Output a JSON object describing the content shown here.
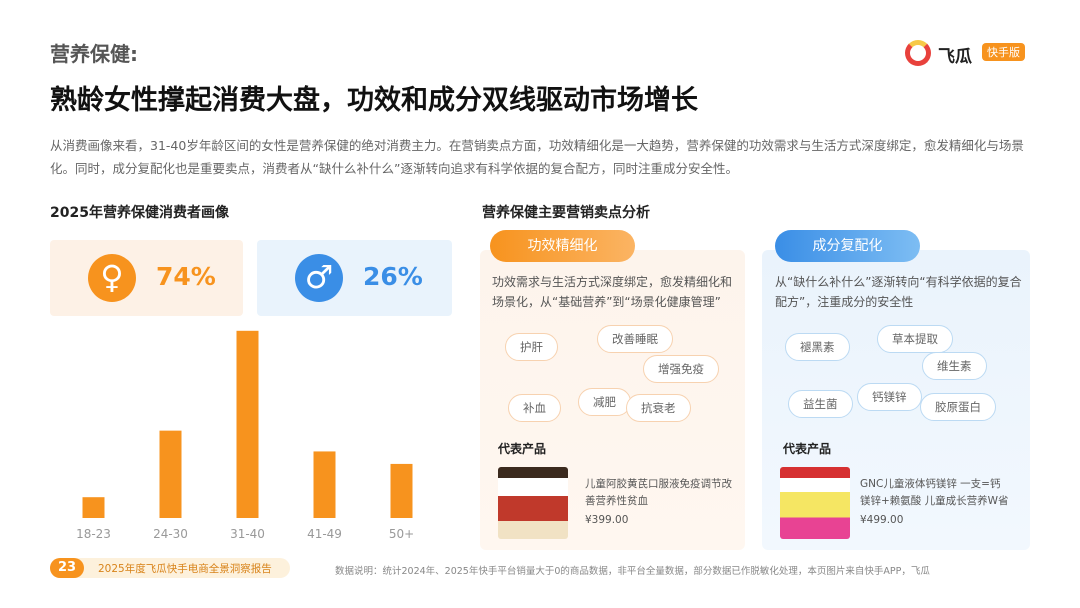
{
  "header": {
    "section": "营养保健:",
    "title": "熟龄女性撑起消费大盘，功效和成分双线驱动市场增长",
    "logo": "飞瓜",
    "logo_badge": "快手版"
  },
  "intro": "从消费画像来看，31-40岁年龄区间的女性是营养保健的绝对消费主力。在营销卖点方面，功效精细化是一大趋势，营养保健的功效需求与生活方式深度绑定，愈发精细化与场景化。同时，成分复配化也是重要卖点，消费者从“缺什么补什么”逐渐转向追求有科学依据的复合配方，同时注重成分安全性。",
  "portrait": {
    "title": "2025年营养保健消费者画像",
    "gender": [
      {
        "symbol": "♀",
        "share": "74%"
      },
      {
        "symbol": "♂",
        "share": "26%"
      }
    ]
  },
  "chart_data": {
    "type": "bar",
    "categories": [
      "18-23",
      "24-30",
      "31-40",
      "41-49",
      "50+"
    ],
    "values": [
      5,
      21,
      45,
      16,
      13
    ],
    "color": "#f7931e",
    "ylim": [
      0,
      50
    ]
  },
  "selling_points": {
    "title": "营养保健主要营销卖点分析",
    "cards": [
      {
        "tag": "功效精细化",
        "desc": "功效需求与生活方式深度绑定，愈发精细化和场景化，从“基础营养”到“场景化健康管理”",
        "keywords": [
          "护肝",
          "改善睡眠",
          "增强免疫",
          "补血",
          "减肥",
          "抗衰老"
        ],
        "product_heading": "代表产品",
        "product_name": "儿童阿胶黄芪口服液免疫调节改善营养性贫血",
        "product_price": "¥399.00"
      },
      {
        "tag": "成分复配化",
        "desc": "从“缺什么补什么”逐渐转向“有科学依据的复合配方”，注重成分的安全性",
        "keywords": [
          "褪黑素",
          "草本提取",
          "维生素",
          "益生菌",
          "钙镁锌",
          "胶原蛋白"
        ],
        "product_heading": "代表产品",
        "product_name": "GNC儿童液体钙镁锌 一支=钙镁锌+赖氨酸 儿童成长营养W省",
        "product_price": "¥499.00"
      }
    ]
  },
  "footer": {
    "page": "23",
    "report": "2025年度飞瓜快手电商全景洞察报告",
    "note": "数据说明：统计2024年、2025年快手平台销量大于0的商品数据，非平台全量数据，部分数据已作脱敏化处理，本页图片来自快手APP，飞瓜"
  }
}
